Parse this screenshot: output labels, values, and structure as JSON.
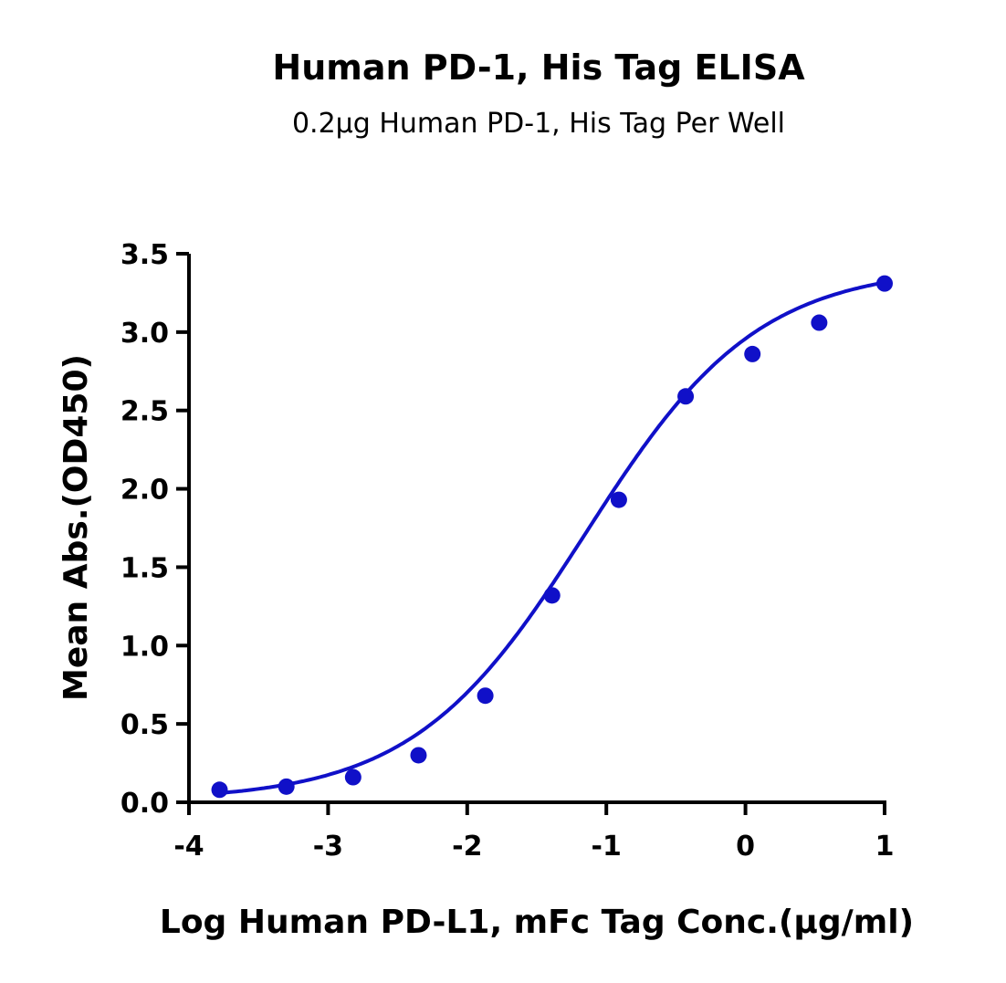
{
  "chart_data": {
    "type": "scatter",
    "title": "Human PD-1, His Tag ELISA",
    "subtitle": "0.2μg Human PD-1, His Tag Per Well",
    "xlabel": "Log Human PD-L1, mFc Tag Conc.(μg/ml)",
    "ylabel": "Mean Abs.(OD450)",
    "xlim": [
      -4,
      1
    ],
    "ylim": [
      0,
      3.5
    ],
    "xticks": [
      "-4",
      "-3",
      "-2",
      "-1",
      "0",
      "1"
    ],
    "yticks": [
      "0.0",
      "0.5",
      "1.0",
      "1.5",
      "2.0",
      "2.5",
      "3.0",
      "3.5"
    ],
    "grid": false,
    "fit": "sigmoidal 4PL curve",
    "color": "#1010c8",
    "x": [
      -3.78,
      -3.3,
      -2.82,
      -2.35,
      -1.87,
      -1.39,
      -0.91,
      -0.43,
      0.05,
      0.53,
      1.0
    ],
    "y": [
      0.08,
      0.1,
      0.16,
      0.3,
      0.68,
      1.32,
      1.93,
      2.59,
      2.86,
      3.06,
      3.31
    ]
  }
}
